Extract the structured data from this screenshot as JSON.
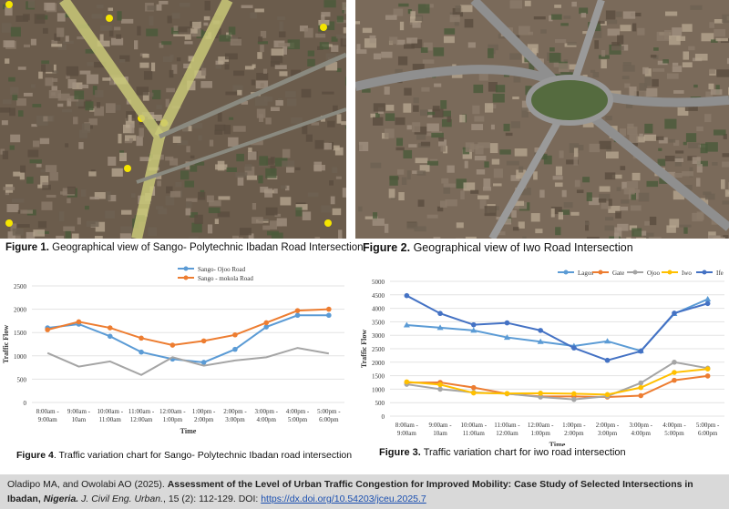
{
  "figures": [
    {
      "label": "Figure 1.",
      "caption": " Geographical view of Sango- Polytechnic Ibadan Road Intersection"
    },
    {
      "label": "Figure 2.",
      "caption": " Geographical view of Iwo Road Intersection"
    },
    {
      "label": "Figure 4",
      "caption": ". Traffic variation chart for Sango- Polytechnic Ibadan road intersection"
    },
    {
      "label": "Figure 3.",
      "caption": " Traffic variation chart for iwo road intersection"
    }
  ],
  "chart_data": [
    {
      "type": "line",
      "xlabel": "Time",
      "ylabel": "Traffic Flow",
      "ylim": [
        0,
        2500
      ],
      "yticks": [
        0,
        500,
        1000,
        1500,
        2000,
        2500
      ],
      "grid": true,
      "legend": "top",
      "categories": [
        "8:00am - 9:00am",
        "9:00am - 10am",
        "10:00am - 11:00am",
        "11:00am - 12:00am",
        "12:00am - 1:00pm",
        "1:00pm - 2:00pm",
        "2:00pm - 3:00pm",
        "3:00pm - 4:00pm",
        "4:00pm - 5:00pm",
        "5:00pm - 6:00pm"
      ],
      "series": [
        {
          "name": "Sango- Ojoo Road",
          "color": "#5b9bd5",
          "values": [
            1600,
            1680,
            1420,
            1080,
            930,
            860,
            1140,
            1620,
            1870,
            1870
          ]
        },
        {
          "name": "Sango - mokola Road",
          "color": "#ed7d31",
          "values": [
            1560,
            1730,
            1600,
            1380,
            1230,
            1320,
            1450,
            1710,
            1970,
            2000
          ]
        },
        {
          "color": "#a5a5a5",
          "values": [
            1060,
            770,
            880,
            590,
            970,
            790,
            900,
            970,
            1170,
            1050
          ]
        }
      ]
    },
    {
      "type": "line",
      "xlabel": "Time",
      "ylabel": "Traffic Flow",
      "ylim": [
        0,
        5000
      ],
      "yticks": [
        0,
        500,
        1000,
        1500,
        2000,
        2500,
        3000,
        3500,
        4000,
        4500,
        5000
      ],
      "grid": true,
      "legend": "top-right",
      "categories": [
        "8:00am - 9:00am",
        "9:00am - 10am",
        "10:00am - 11:00am",
        "11:00am - 12:00am",
        "12:00am - 1:00pm",
        "1:00pm - 2:00pm",
        "2:00pm - 3:00pm",
        "3:00pm - 4:00pm",
        "4:00pm - 5:00pm",
        "5:00pm - 6:00pm"
      ],
      "series": [
        {
          "name": "Lagos",
          "color": "#5b9bd5",
          "marker": "triangle",
          "values": [
            3380,
            3280,
            3180,
            2920,
            2760,
            2600,
            2780,
            2420,
            3800,
            4340
          ]
        },
        {
          "name": "Gate",
          "color": "#ed7d31",
          "marker": "circle",
          "values": [
            1240,
            1250,
            1060,
            830,
            730,
            730,
            710,
            760,
            1330,
            1490
          ]
        },
        {
          "name": "Ojoo",
          "color": "#a5a5a5",
          "marker": "circle",
          "values": [
            1180,
            1000,
            880,
            830,
            710,
            620,
            740,
            1230,
            2000,
            1780
          ]
        },
        {
          "name": "Iwo",
          "color": "#ffc000",
          "marker": "circle",
          "values": [
            1270,
            1170,
            860,
            840,
            850,
            830,
            800,
            1060,
            1620,
            1750
          ]
        },
        {
          "name": "Ife",
          "color": "#4472c4",
          "marker": "circle",
          "values": [
            4470,
            3810,
            3390,
            3460,
            3180,
            2530,
            2070,
            2410,
            3820,
            4180
          ]
        }
      ]
    }
  ],
  "footer": {
    "authors": "Oladipo MA, and Owolabi AO (2025). ",
    "title": "Assessment of the Level of Urban Traffic Congestion for Improved Mobility: Case Study of Selected Intersections in Ibadan, ",
    "title_italic": "Nigeria.",
    "journal": " J. Civil Eng. Urban.",
    "volume": ", 15 (2): 112-129. DOI: ",
    "doi": "https://dx.doi.org/10.54203/jceu.2025.7"
  }
}
